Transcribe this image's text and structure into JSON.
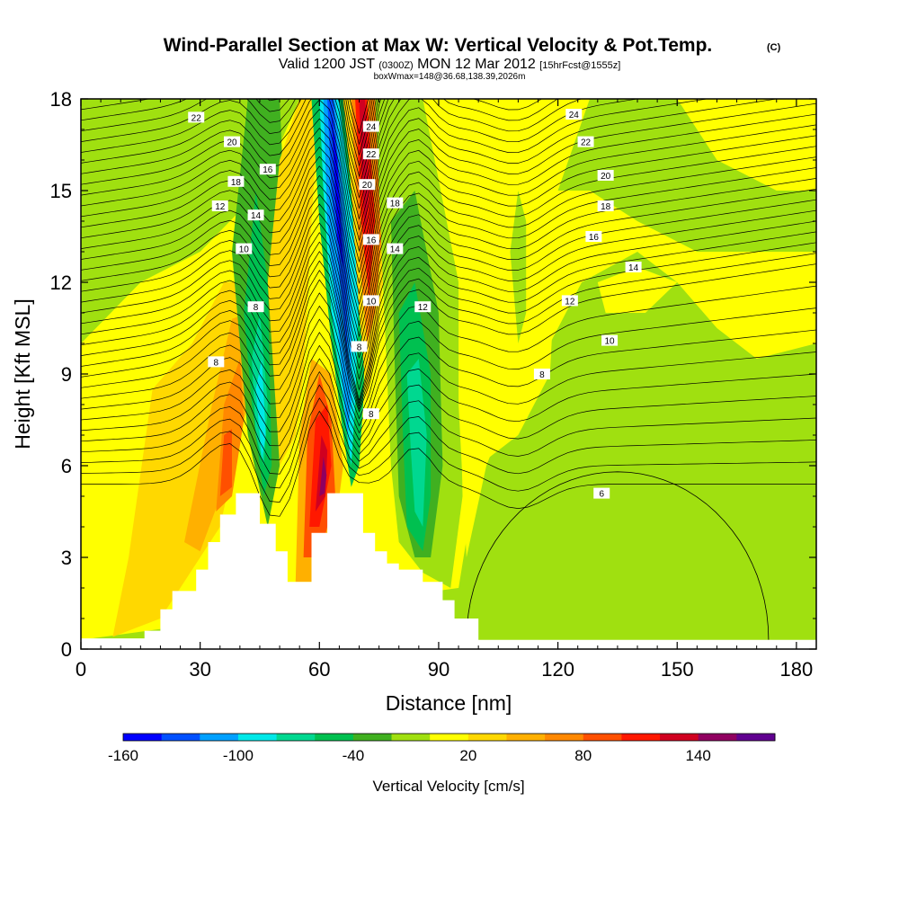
{
  "chart_data": {
    "type": "heatmap",
    "title": "Wind-Parallel Section at Max W: Vertical Velocity & Pot.Temp.",
    "title_mark": "(C)",
    "subtitle": {
      "valid": "Valid 1200 JST",
      "utc": "(0300Z)",
      "date": "MON 12 Mar 2012",
      "forecast": "[15hrFcst@1555z]"
    },
    "box_info": "boxWmax=148@36.68,138.39,2026m",
    "xlabel": "Distance [nm]",
    "ylabel": "Height [Kft MSL]",
    "xlim": [
      0,
      185
    ],
    "ylim": [
      0,
      18
    ],
    "x_ticks": [
      0,
      30,
      60,
      90,
      120,
      150,
      180
    ],
    "y_ticks": [
      0,
      3,
      6,
      9,
      12,
      15,
      18
    ],
    "colorbar": {
      "label": "Vertical Velocity [cm/s]",
      "tick_labels": [
        "-160",
        "-100",
        "-40",
        "20",
        "80",
        "140"
      ],
      "colors": [
        "#0000ff",
        "#0050ff",
        "#00a0ff",
        "#00e8e8",
        "#00d890",
        "#00c050",
        "#40b020",
        "#a0e010",
        "#ffff00",
        "#ffd800",
        "#ffb000",
        "#ff8800",
        "#ff5000",
        "#ff1800",
        "#d00020",
        "#900060",
        "#600090"
      ]
    },
    "contour_levels": [
      "6",
      "8",
      "10",
      "12",
      "14",
      "16",
      "18",
      "20",
      "22",
      "24"
    ],
    "series": [
      {
        "field": "vertical_velocity_cm_s",
        "background_value": 10,
        "features": [
          {
            "x": 37,
            "y": 6.5,
            "value": 60
          },
          {
            "x": 46,
            "y": 8.5,
            "value": -100
          },
          {
            "x": 61,
            "y": 6,
            "value": 140
          },
          {
            "x": 69,
            "y": 13,
            "value": -160
          },
          {
            "x": 73,
            "y": 14,
            "value": 130
          },
          {
            "x": 84,
            "y": 8,
            "value": -60
          },
          {
            "x": 110,
            "y": 13,
            "value": -30
          }
        ]
      }
    ],
    "terrain_profile": [
      [
        0,
        0.35
      ],
      [
        16,
        0.35
      ],
      [
        16,
        0.6
      ],
      [
        20,
        0.6
      ],
      [
        20,
        1.3
      ],
      [
        23,
        1.3
      ],
      [
        23,
        1.9
      ],
      [
        29,
        1.9
      ],
      [
        29,
        2.6
      ],
      [
        32,
        2.6
      ],
      [
        32,
        3.5
      ],
      [
        35,
        3.5
      ],
      [
        35,
        4.4
      ],
      [
        39,
        4.4
      ],
      [
        39,
        5.1
      ],
      [
        45,
        5.1
      ],
      [
        45,
        4.1
      ],
      [
        49,
        4.1
      ],
      [
        49,
        3.2
      ],
      [
        52,
        3.2
      ],
      [
        52,
        2.2
      ],
      [
        58,
        2.2
      ],
      [
        58,
        3.8
      ],
      [
        62,
        3.8
      ],
      [
        62,
        5.1
      ],
      [
        71,
        5.1
      ],
      [
        71,
        3.8
      ],
      [
        74,
        3.8
      ],
      [
        74,
        3.2
      ],
      [
        77,
        3.2
      ],
      [
        77,
        2.8
      ],
      [
        80,
        2.8
      ],
      [
        80,
        2.6
      ],
      [
        86,
        2.6
      ],
      [
        86,
        2.2
      ],
      [
        91,
        2.2
      ],
      [
        91,
        1.6
      ],
      [
        94,
        1.6
      ],
      [
        94,
        1.0
      ],
      [
        100,
        1.0
      ],
      [
        100,
        0.3
      ],
      [
        185,
        0.3
      ]
    ]
  }
}
